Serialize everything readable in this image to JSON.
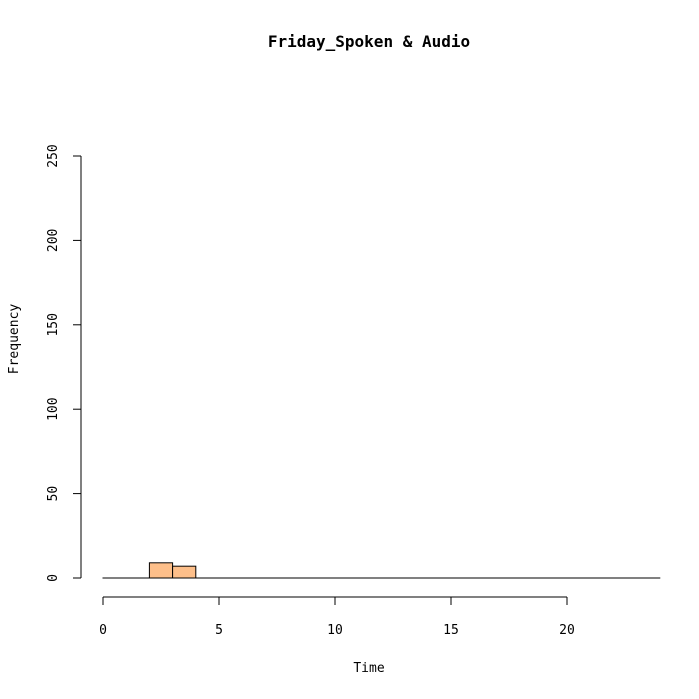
{
  "chart_data": {
    "type": "bar",
    "title": "Friday_Spoken & Audio",
    "xlabel": "Time",
    "ylabel": "Frequency",
    "xlim": [
      0,
      24
    ],
    "ylim": [
      0,
      250
    ],
    "x_ticks": [
      "0",
      "5",
      "10",
      "15",
      "20"
    ],
    "y_ticks": [
      "0",
      "50",
      "100",
      "150",
      "200",
      "250"
    ],
    "bins": [
      {
        "start": 0,
        "end": 1,
        "count": 0
      },
      {
        "start": 1,
        "end": 2,
        "count": 0
      },
      {
        "start": 2,
        "end": 3,
        "count": 9
      },
      {
        "start": 3,
        "end": 4,
        "count": 7
      },
      {
        "start": 4,
        "end": 5,
        "count": 0
      },
      {
        "start": 5,
        "end": 6,
        "count": 0
      },
      {
        "start": 6,
        "end": 7,
        "count": 0
      },
      {
        "start": 7,
        "end": 8,
        "count": 0
      },
      {
        "start": 8,
        "end": 9,
        "count": 0
      },
      {
        "start": 9,
        "end": 10,
        "count": 0
      },
      {
        "start": 10,
        "end": 11,
        "count": 0
      },
      {
        "start": 11,
        "end": 12,
        "count": 0
      },
      {
        "start": 12,
        "end": 13,
        "count": 0
      },
      {
        "start": 13,
        "end": 14,
        "count": 0
      },
      {
        "start": 14,
        "end": 15,
        "count": 0
      },
      {
        "start": 15,
        "end": 16,
        "count": 0
      },
      {
        "start": 16,
        "end": 17,
        "count": 0
      },
      {
        "start": 17,
        "end": 18,
        "count": 0
      },
      {
        "start": 18,
        "end": 19,
        "count": 0
      },
      {
        "start": 19,
        "end": 20,
        "count": 0
      },
      {
        "start": 20,
        "end": 21,
        "count": 0
      },
      {
        "start": 21,
        "end": 22,
        "count": 0
      },
      {
        "start": 22,
        "end": 23,
        "count": 0
      },
      {
        "start": 23,
        "end": 24,
        "count": 0
      }
    ],
    "bar_color": "#FDBF8A",
    "bar_edge_color": "#000000",
    "grid": false,
    "legend": "none"
  }
}
